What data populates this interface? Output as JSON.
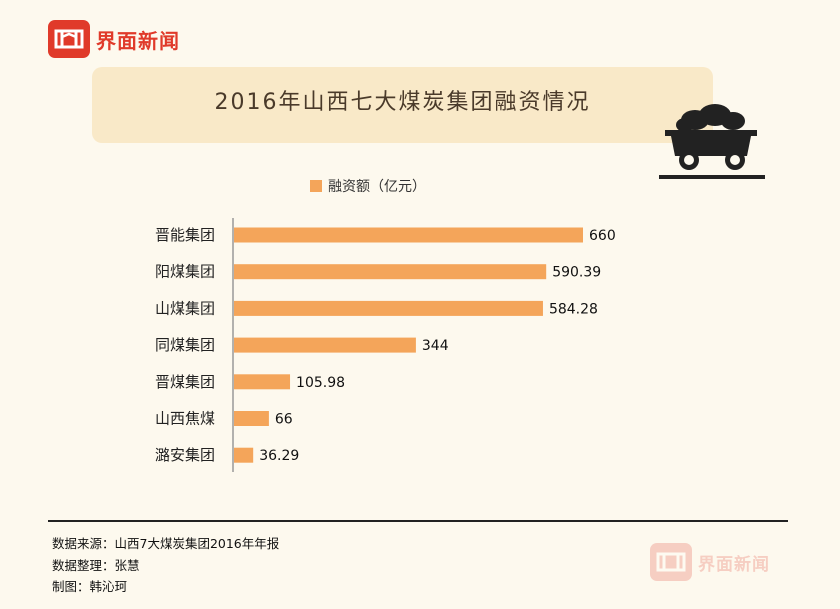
{
  "brand": {
    "name": "界面新闻",
    "color": "#e03a2a"
  },
  "title": "2016年山西七大煤炭集团融资情况",
  "legend": {
    "label": "融资额（亿元）"
  },
  "colors": {
    "bar": "#f4a55a",
    "axis": "#999999"
  },
  "chart_data": {
    "type": "bar",
    "orientation": "horizontal",
    "categories": [
      "晋能集团",
      "阳煤集团",
      "山煤集团",
      "同煤集团",
      "晋煤集团",
      "山西焦煤",
      "潞安集团"
    ],
    "series": [
      {
        "name": "融资额（亿元）",
        "values": [
          660,
          590.39,
          584.28,
          344,
          105.98,
          66,
          36.29
        ]
      }
    ],
    "value_labels": [
      "660",
      "590.39",
      "584.28",
      "344",
      "105.98",
      "66",
      "36.29"
    ],
    "xlim": [
      0,
      700
    ],
    "grid": false,
    "legend_position": "top"
  },
  "footer": {
    "source": "数据来源：山西7大煤炭集团2016年年报",
    "compiler": "数据整理：张慧",
    "designer": "制图：韩沁珂"
  },
  "icons": {
    "logo": "jiemian-logo-icon",
    "cart": "coal-cart-icon"
  }
}
